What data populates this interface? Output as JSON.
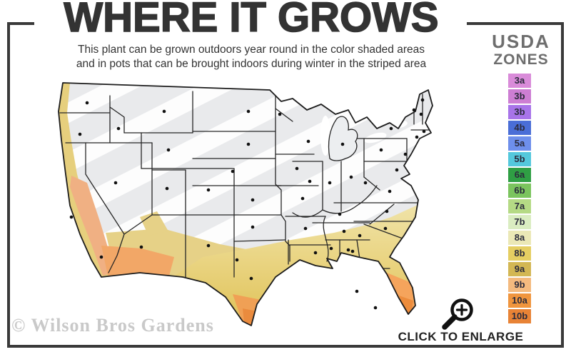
{
  "header": {
    "title": "WHERE IT GROWS",
    "subtitle_line1": "This plant can be grown outdoors year round in the color shaded areas",
    "subtitle_line2": "and in pots that can be brought indoors during winter in the striped area"
  },
  "legend": {
    "title_line1": "USDA",
    "title_line2": "ZONES",
    "zones": [
      {
        "label": "3a",
        "color": "#d98bd9"
      },
      {
        "label": "3b",
        "color": "#cd7ed3"
      },
      {
        "label": "3b",
        "color": "#a874e9"
      },
      {
        "label": "4b",
        "color": "#4a6ed7"
      },
      {
        "label": "5a",
        "color": "#6e8feb"
      },
      {
        "label": "5b",
        "color": "#54c8dc"
      },
      {
        "label": "6a",
        "color": "#2f9f44"
      },
      {
        "label": "6b",
        "color": "#7bc45e"
      },
      {
        "label": "7a",
        "color": "#b5da85"
      },
      {
        "label": "7b",
        "color": "#daedc1"
      },
      {
        "label": "8a",
        "color": "#ebe8b6"
      },
      {
        "label": "8b",
        "color": "#e5ce62"
      },
      {
        "label": "9a",
        "color": "#d3b754"
      },
      {
        "label": "9b",
        "color": "#f4ba7f"
      },
      {
        "label": "10a",
        "color": "#f0953e"
      },
      {
        "label": "10b",
        "color": "#e88336"
      }
    ]
  },
  "map": {
    "base_color": "#e9eaec",
    "stripe_color": "#ffffff",
    "state_border_color": "#262626",
    "outline_color": "#1c1c1c",
    "city_dot_color": "#111111"
  },
  "frame": {
    "color": "#3a3a3a"
  },
  "footer": {
    "watermark": "© Wilson Bros Gardens",
    "enlarge_label": "CLICK TO ENLARGE"
  }
}
